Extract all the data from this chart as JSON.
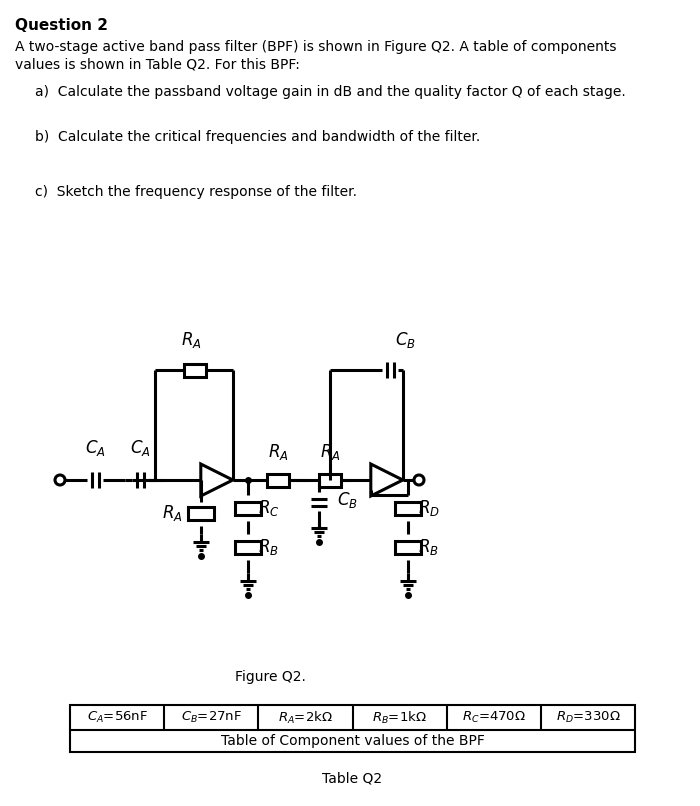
{
  "title": "Question 2",
  "intro_line1": "A two-stage active band pass filter (BPF) is shown in Figure Q2. A table of components",
  "intro_line2": "values is shown in Table Q2. For this BPF:",
  "qa": "a)  Calculate the passband voltage gain in dB and the quality factor Q of each stage.",
  "qb": "b)  Calculate the critical frequencies and bandwidth of the filter.",
  "qc": "c)  Sketch the frequency response of the filter.",
  "figure_caption": "Figure Q2.",
  "table_caption": "Table Q2",
  "table_header": [
    "Cₐ=56nF",
    "C₂=27nF",
    "Rₐ=2kΩ",
    "R₂=1kΩ",
    "R₈=470Ω",
    "Rₑ=330Ω"
  ],
  "table_header_raw": [
    "CA=56nF",
    "CB=27nF",
    "RA=2kΩ",
    "RB=1kΩ",
    "RC=470Ω",
    "RD=330Ω"
  ],
  "table_sub": "Table of Component values of the BPF",
  "bg_color": "#ffffff",
  "text_color": "#000000",
  "title_fontsize": 11,
  "body_fontsize": 10,
  "fig_width": 7.0,
  "fig_height": 8.06
}
